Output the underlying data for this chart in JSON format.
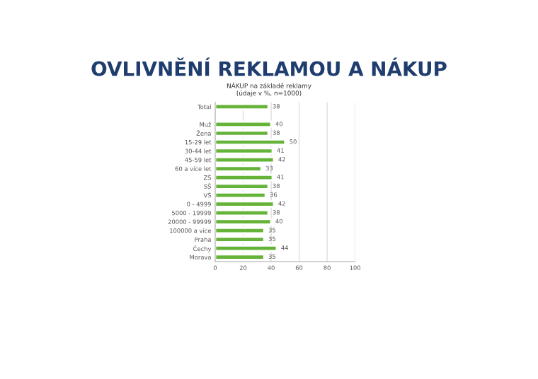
{
  "chart_data": {
    "type": "bar",
    "orientation": "horizontal",
    "title": "OVLIVNĚNÍ REKLAMOU A NÁKUP",
    "subtitle": "NÁKUP na základě reklamy\n(údaje v %, n=1000)",
    "categories": [
      "Total",
      null,
      "Muž",
      "Žena",
      "15-29 let",
      "30-44 let",
      "45-59 let",
      "60 a více let",
      "ZŠ",
      "SŠ",
      "VŠ",
      "0 - 4999",
      "5000 - 19999",
      "20000 - 99999",
      "100000 a více",
      "Praha",
      "Čechy",
      "Morava"
    ],
    "values": [
      38,
      null,
      40,
      38,
      50,
      41,
      42,
      33,
      41,
      38,
      36,
      42,
      38,
      40,
      35,
      35,
      44,
      35
    ],
    "color": "#66b33a",
    "xlim": [
      0,
      100
    ],
    "xticks": [
      0,
      20,
      40,
      60,
      80,
      100
    ],
    "grid": "x",
    "data_labels": true
  }
}
